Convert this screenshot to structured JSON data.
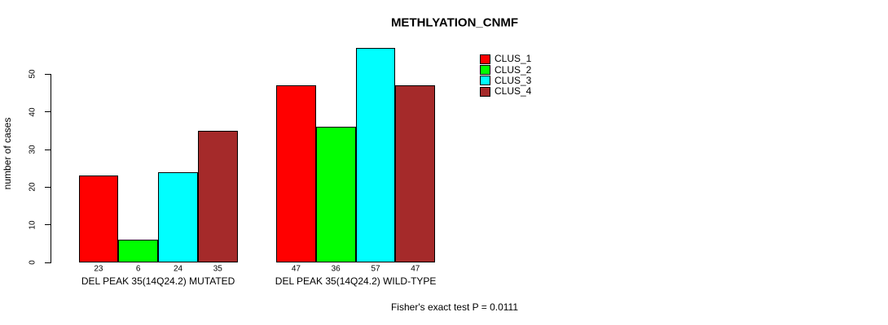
{
  "title": "METHLYATION_CNMF",
  "y_axis": {
    "label": "number of cases"
  },
  "footnote": "Fisher's exact test P = 0.0111",
  "legend": {
    "items": [
      {
        "label": "CLUS_1",
        "color": "#FF0000"
      },
      {
        "label": "CLUS_2",
        "color": "#00FF00"
      },
      {
        "label": "CLUS_3",
        "color": "#00FFFF"
      },
      {
        "label": "CLUS_4",
        "color": "#A52A2A"
      }
    ]
  },
  "chart_data": {
    "type": "bar",
    "title": "METHLYATION_CNMF",
    "ylabel": "number of cases",
    "xlabel": "",
    "ylim": [
      0,
      57
    ],
    "yticks": [
      0,
      10,
      20,
      30,
      40,
      50
    ],
    "grid": false,
    "legend_position": "top-right",
    "series": [
      "CLUS_1",
      "CLUS_2",
      "CLUS_3",
      "CLUS_4"
    ],
    "series_colors": [
      "#FF0000",
      "#00FF00",
      "#00FFFF",
      "#A52A2A"
    ],
    "bar_border_color": "#000000",
    "value_labels_shown": true,
    "groups": [
      {
        "label": "DEL PEAK 35(14Q24.2) MUTATED",
        "values": [
          23,
          6,
          24,
          35
        ]
      },
      {
        "label": "DEL PEAK 35(14Q24.2) WILD-TYPE",
        "values": [
          47,
          36,
          57,
          47
        ]
      }
    ],
    "annotation": "Fisher's exact test P = 0.0111"
  }
}
